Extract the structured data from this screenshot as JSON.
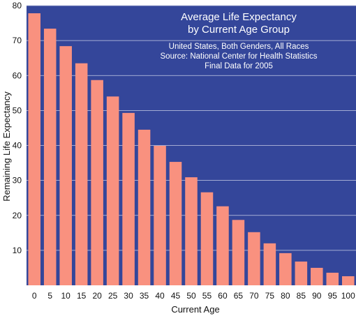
{
  "chart_data": {
    "type": "bar",
    "title_lines": [
      "Average Life Expectancy",
      "by Current Age Group"
    ],
    "subtitle_lines": [
      "United States, Both Genders, All Races",
      "Source: National Center for Health Statistics",
      "Final Data for 2005"
    ],
    "xlabel": "Current Age",
    "ylabel": "Remaining Life Expectancy",
    "ylim": [
      0,
      80
    ],
    "yticks": [
      10,
      20,
      30,
      40,
      50,
      60,
      70,
      80
    ],
    "grid": true,
    "categories": [
      "0",
      "5",
      "10",
      "15",
      "20",
      "25",
      "30",
      "35",
      "40",
      "45",
      "50",
      "55",
      "60",
      "65",
      "70",
      "75",
      "80",
      "85",
      "90",
      "95",
      "100"
    ],
    "values": [
      77.8,
      73.4,
      68.4,
      63.5,
      58.7,
      54.0,
      49.3,
      44.5,
      39.9,
      35.3,
      30.9,
      26.6,
      22.6,
      18.7,
      15.2,
      12.0,
      9.2,
      6.8,
      5.0,
      3.6,
      2.6
    ],
    "colors": {
      "background": "#34469a",
      "bar": "#f9917f",
      "grid": "#c8cde6"
    }
  }
}
